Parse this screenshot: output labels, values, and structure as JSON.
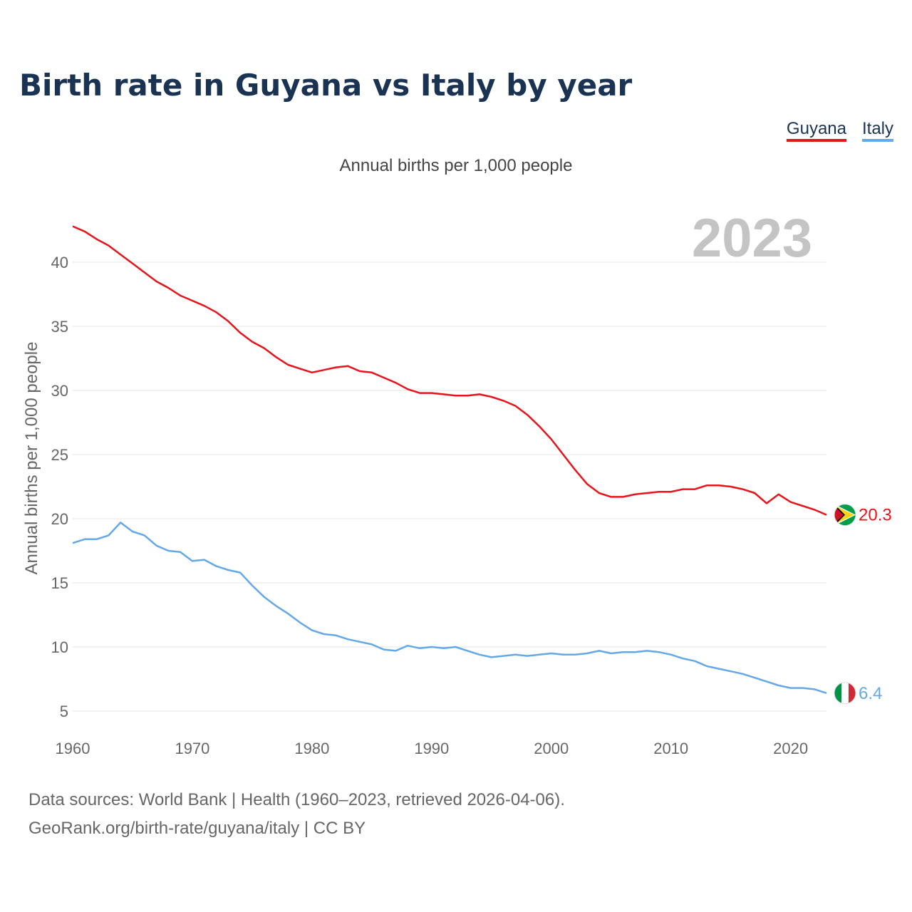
{
  "chart_data": {
    "type": "line",
    "title": "Birth rate in Guyana vs Italy by year",
    "subtitle": "Annual births per 1,000 people",
    "ylabel": "Annual births per 1,000 people",
    "xlabel": "",
    "year_label": "2023",
    "xlim": [
      1960,
      2023
    ],
    "ylim": [
      4,
      43
    ],
    "x_ticks": [
      1960,
      1970,
      1980,
      1990,
      2000,
      2010,
      2020
    ],
    "y_ticks": [
      5,
      10,
      15,
      20,
      25,
      30,
      35,
      40
    ],
    "grid": true,
    "legend": [
      "Guyana",
      "Italy"
    ],
    "legend_position": "top-right",
    "x": [
      1960,
      1961,
      1962,
      1963,
      1964,
      1965,
      1966,
      1967,
      1968,
      1969,
      1970,
      1971,
      1972,
      1973,
      1974,
      1975,
      1976,
      1977,
      1978,
      1979,
      1980,
      1981,
      1982,
      1983,
      1984,
      1985,
      1986,
      1987,
      1988,
      1989,
      1990,
      1991,
      1992,
      1993,
      1994,
      1995,
      1996,
      1997,
      1998,
      1999,
      2000,
      2001,
      2002,
      2003,
      2004,
      2005,
      2006,
      2007,
      2008,
      2009,
      2010,
      2011,
      2012,
      2013,
      2014,
      2015,
      2016,
      2017,
      2018,
      2019,
      2020,
      2021,
      2022,
      2023
    ],
    "series": [
      {
        "name": "Guyana",
        "color": "#e8141b",
        "end_label": "20.3",
        "values": [
          42.8,
          42.4,
          41.8,
          41.3,
          40.6,
          39.9,
          39.2,
          38.5,
          38.0,
          37.4,
          37.0,
          36.6,
          36.1,
          35.4,
          34.5,
          33.8,
          33.3,
          32.6,
          32.0,
          31.7,
          31.4,
          31.6,
          31.8,
          31.9,
          31.5,
          31.4,
          31.0,
          30.6,
          30.1,
          29.8,
          29.8,
          29.7,
          29.6,
          29.6,
          29.7,
          29.5,
          29.2,
          28.8,
          28.1,
          27.2,
          26.2,
          25.0,
          23.8,
          22.7,
          22.0,
          21.7,
          21.7,
          21.9,
          22.0,
          22.1,
          22.1,
          22.3,
          22.3,
          22.6,
          22.6,
          22.5,
          22.3,
          22.0,
          21.2,
          21.9,
          21.3,
          21.0,
          20.7,
          20.3
        ]
      },
      {
        "name": "Italy",
        "color": "#64a8e8",
        "end_label": "6.4",
        "values": [
          18.1,
          18.4,
          18.4,
          18.7,
          19.7,
          19.0,
          18.7,
          17.9,
          17.5,
          17.4,
          16.7,
          16.8,
          16.3,
          16.0,
          15.8,
          14.8,
          13.9,
          13.2,
          12.6,
          11.9,
          11.3,
          11.0,
          10.9,
          10.6,
          10.4,
          10.2,
          9.8,
          9.7,
          10.1,
          9.9,
          10.0,
          9.9,
          10.0,
          9.7,
          9.4,
          9.2,
          9.3,
          9.4,
          9.3,
          9.4,
          9.5,
          9.4,
          9.4,
          9.5,
          9.7,
          9.5,
          9.6,
          9.6,
          9.7,
          9.6,
          9.4,
          9.1,
          8.9,
          8.5,
          8.3,
          8.1,
          7.9,
          7.6,
          7.3,
          7.0,
          6.8,
          6.8,
          6.7,
          6.4
        ]
      }
    ],
    "source_line1": "Data sources: World Bank | Health (1960–2023, retrieved 2026-04-06).",
    "source_line2": "GeoRank.org/birth-rate/guyana/italy | CC BY"
  }
}
